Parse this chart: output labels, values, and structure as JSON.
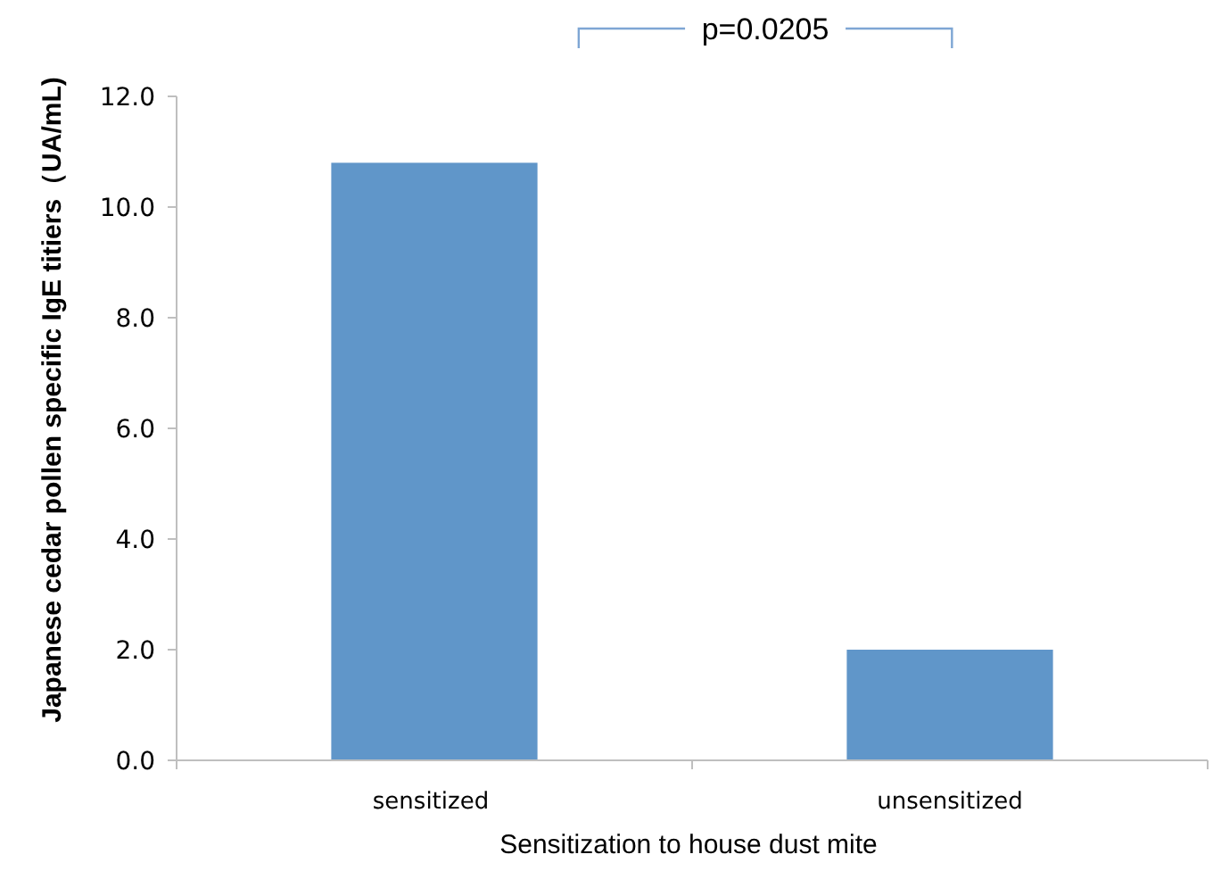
{
  "chart_data": {
    "type": "bar",
    "xlabel": "Sensitization to house dust mite",
    "ylabel": "Japanese cedar pollen specific IgE titiers（UA/mL)",
    "categories": [
      "sensitized",
      "unsensitized"
    ],
    "values": [
      10.8,
      2.0
    ],
    "color": "#6096c9",
    "ylim": [
      0,
      12
    ],
    "yticks": [
      {
        "value": 0,
        "label": "0.0"
      },
      {
        "value": 2,
        "label": "2.0"
      },
      {
        "value": 4,
        "label": "4.0"
      },
      {
        "value": 6,
        "label": "6.0"
      },
      {
        "value": 8,
        "label": "8.0"
      },
      {
        "value": 10,
        "label": "10.0"
      },
      {
        "value": 12,
        "label": "12.0"
      }
    ],
    "grid": false,
    "annotations": [
      "p=0.0205"
    ]
  }
}
